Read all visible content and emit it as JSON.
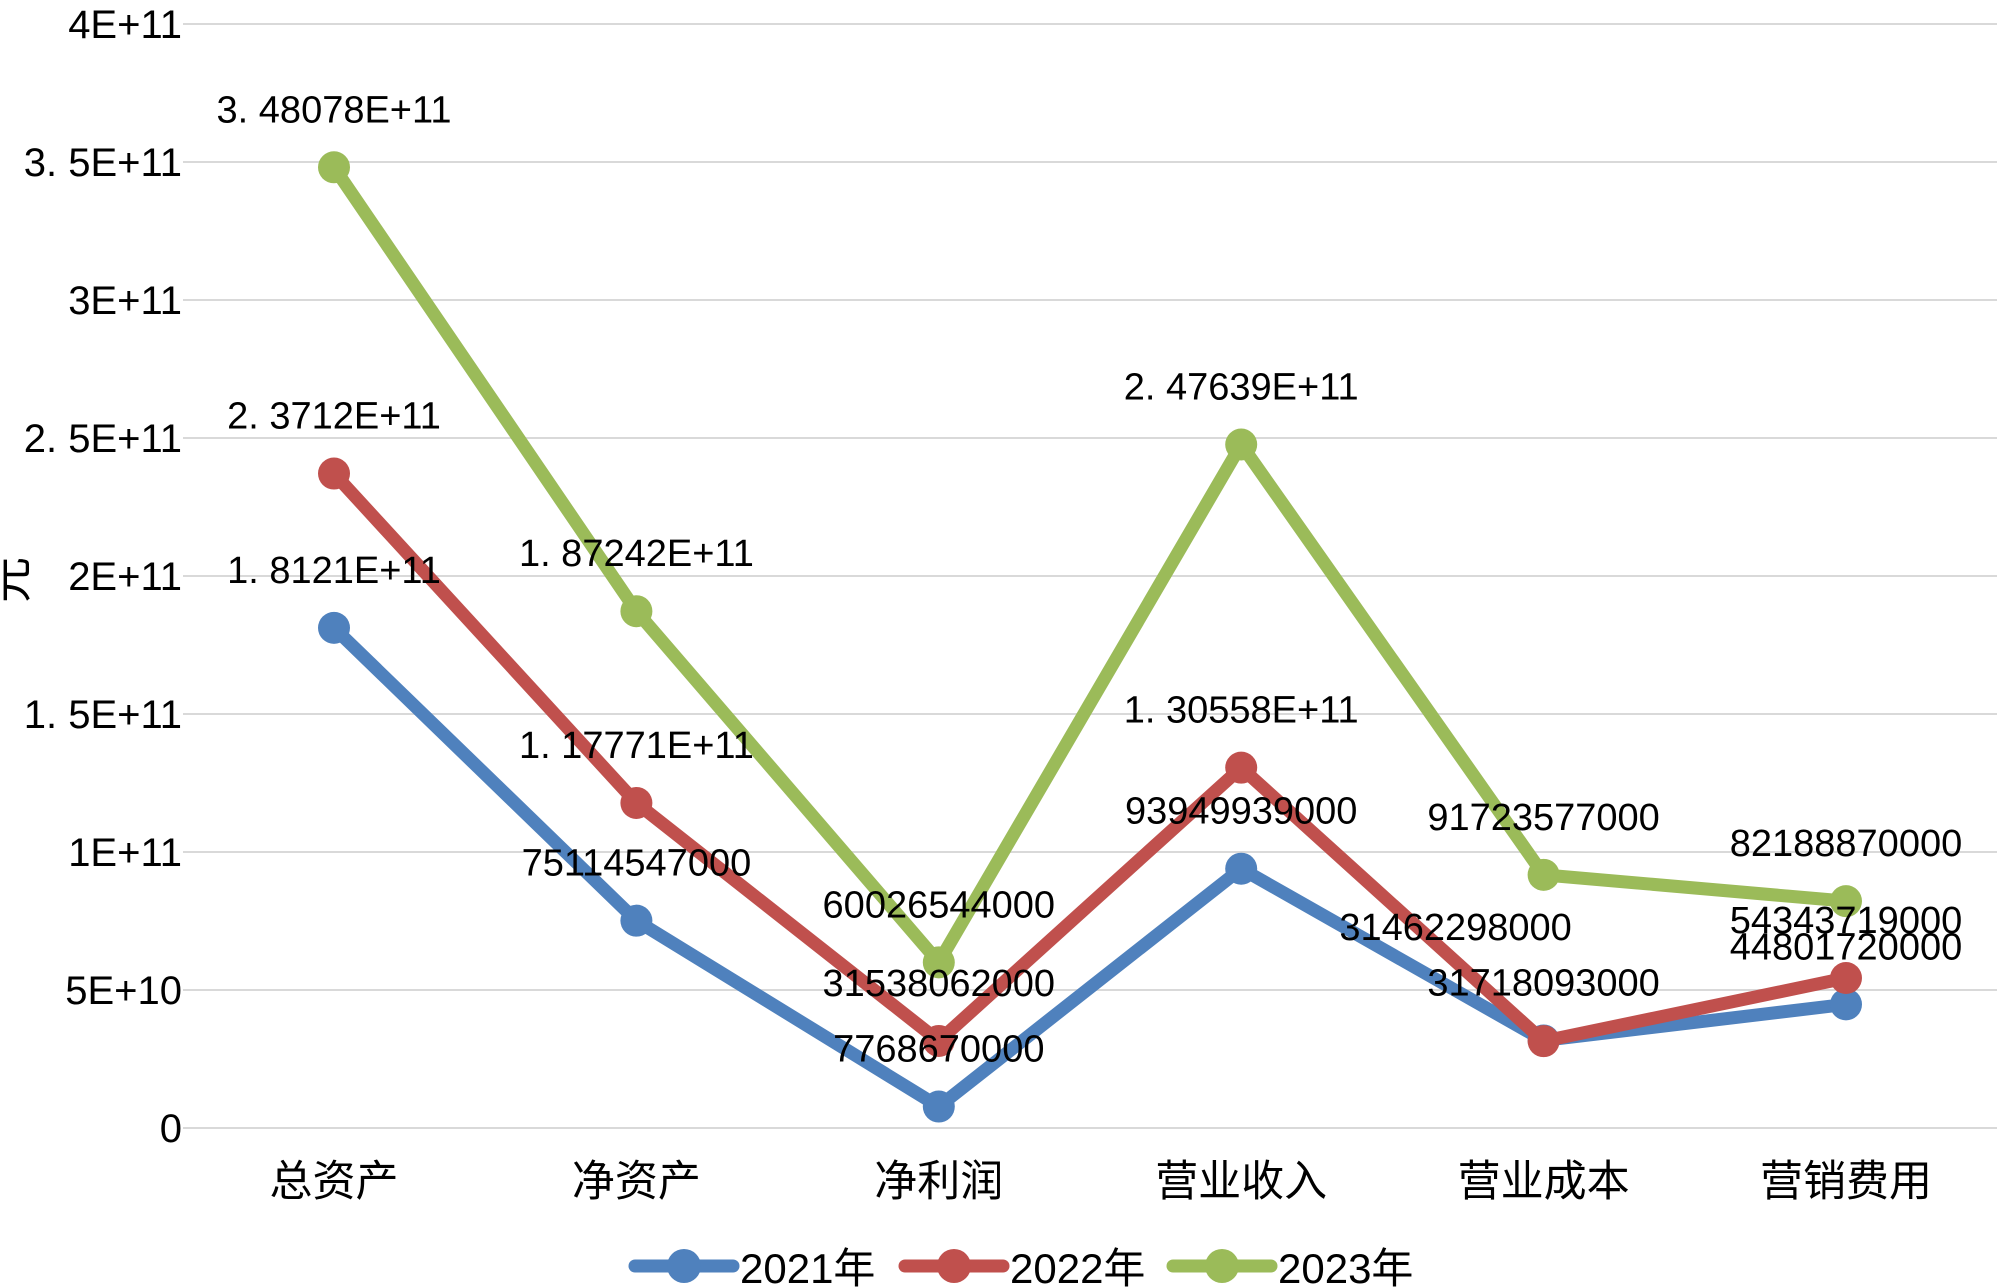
{
  "chart_data": {
    "type": "line",
    "title": "",
    "ylabel": "元",
    "xlabel": "",
    "categories": [
      "总资产",
      "净资产",
      "净利润",
      "营业收入",
      "营业成本",
      "营销费用"
    ],
    "series": [
      {
        "name": "2021年",
        "color": "#4F81BD",
        "values": [
          181210000000,
          75114547000,
          7768670000,
          93949939000,
          31718093000,
          44801720000
        ],
        "labels": [
          "1. 8121E+11",
          "75114547000",
          "7768670000",
          "93949939000",
          "31718093000",
          "44801720000"
        ]
      },
      {
        "name": "2022年",
        "color": "#C0504D",
        "values": [
          237120000000,
          117771000000,
          31538062000,
          130558000000,
          31462298000,
          54343719000
        ],
        "labels": [
          "2. 3712E+11",
          "1. 17771E+11",
          "31538062000",
          "1. 30558E+11",
          "31462298000",
          "54343719000"
        ]
      },
      {
        "name": "2023年",
        "color": "#9BBB59",
        "values": [
          348078000000,
          187242000000,
          60026544000,
          247639000000,
          91723577000,
          82188870000
        ],
        "labels": [
          "3. 48078E+11",
          "1. 87242E+11",
          "60026544000",
          "2. 47639E+11",
          "91723577000",
          "82188870000"
        ]
      }
    ],
    "y_axis": {
      "min": 0,
      "max": 400000000000,
      "step": 50000000000,
      "tick_labels": [
        "0",
        "5E+10",
        "1E+11",
        "1. 5E+11",
        "2E+11",
        "2. 5E+11",
        "3E+11",
        "3. 5E+11",
        "4E+11"
      ]
    },
    "grid": true,
    "gridline_color": "#D9D9D9",
    "legend_position": "bottom",
    "label_offsets": [
      {
        "series": 1,
        "point": 4,
        "dx": -88,
        "dy": -56
      }
    ]
  }
}
